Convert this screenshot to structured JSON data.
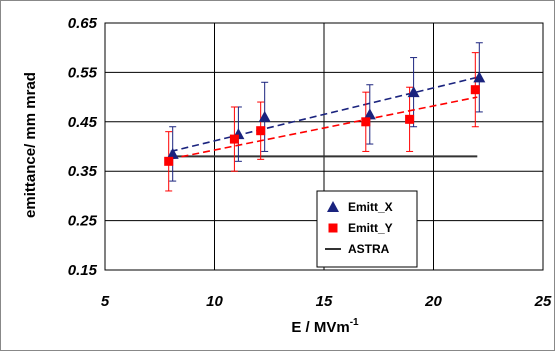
{
  "chart_data": {
    "type": "scatter",
    "xlabel": "E / MVm",
    "xlabel_sup": "-1",
    "ylabel": "emittance/ mm mrad",
    "xlim": [
      5,
      25
    ],
    "ylim": [
      0.15,
      0.65
    ],
    "xticks": [
      "5",
      "10",
      "15",
      "20",
      "25"
    ],
    "yticks": [
      "0.15",
      "0.25",
      "0.35",
      "0.45",
      "0.55",
      "0.65"
    ],
    "grid": true,
    "legend_position": "bottom-right",
    "series": [
      {
        "name": "Emitt_X",
        "marker": "triangle",
        "color": "#1a237e",
        "points": [
          {
            "x": 8,
            "y": 0.385,
            "err": 0.055
          },
          {
            "x": 11,
            "y": 0.425,
            "err": 0.055
          },
          {
            "x": 12.2,
            "y": 0.46,
            "err": 0.07
          },
          {
            "x": 17,
            "y": 0.465,
            "err": 0.06
          },
          {
            "x": 19,
            "y": 0.51,
            "err": 0.07
          },
          {
            "x": 22,
            "y": 0.54,
            "err": 0.07
          }
        ],
        "trend": {
          "x": [
            8,
            22
          ],
          "y": [
            0.39,
            0.54
          ]
        }
      },
      {
        "name": "Emitt_Y",
        "marker": "square",
        "color": "#ff0000",
        "points": [
          {
            "x": 8,
            "y": 0.37,
            "err": 0.06
          },
          {
            "x": 11,
            "y": 0.415,
            "err": 0.065
          },
          {
            "x": 12.2,
            "y": 0.432,
            "err": 0.058
          },
          {
            "x": 17,
            "y": 0.45,
            "err": 0.06
          },
          {
            "x": 19,
            "y": 0.455,
            "err": 0.065
          },
          {
            "x": 22,
            "y": 0.515,
            "err": 0.075
          }
        ],
        "trend": {
          "x": [
            8,
            22
          ],
          "y": [
            0.375,
            0.5
          ]
        }
      },
      {
        "name": "ASTRA",
        "marker": "none",
        "color": "#333333",
        "line": {
          "x": [
            8,
            22
          ],
          "y": [
            0.38,
            0.38
          ]
        }
      }
    ]
  }
}
